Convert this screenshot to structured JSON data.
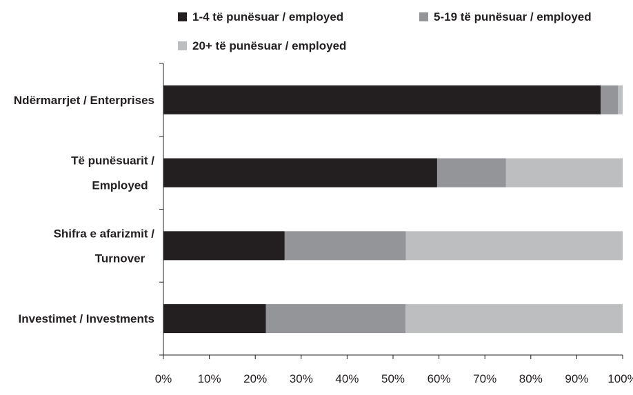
{
  "chart_data": {
    "type": "bar",
    "orientation": "horizontal",
    "stacked": true,
    "normalized": true,
    "categories": [
      [
        "Ndërmarrjet / Enterprises"
      ],
      [
        "Të punësuarit /",
        "Employed"
      ],
      [
        "Shifra e afarizmit /",
        "Turnover"
      ],
      [
        "Investimet / Investments"
      ]
    ],
    "series": [
      {
        "name": "1-4 të punësuar  / employed",
        "color": "#231f20",
        "values": [
          95.2,
          59.6,
          26.4,
          22.3
        ]
      },
      {
        "name": "5-19 të punësuar / employed",
        "color": "#939598",
        "values": [
          3.8,
          15.0,
          26.4,
          30.4
        ]
      },
      {
        "name": "20+ të punësuar / employed",
        "color": "#bcbec0",
        "values": [
          1.0,
          25.4,
          47.2,
          47.3
        ]
      }
    ],
    "x_ticks": [
      "0%",
      "10%",
      "20%",
      "30%",
      "40%",
      "50%",
      "60%",
      "70%",
      "80%",
      "90%",
      "100%"
    ],
    "xlim": [
      0,
      100
    ],
    "grid": false,
    "legend": "top"
  }
}
